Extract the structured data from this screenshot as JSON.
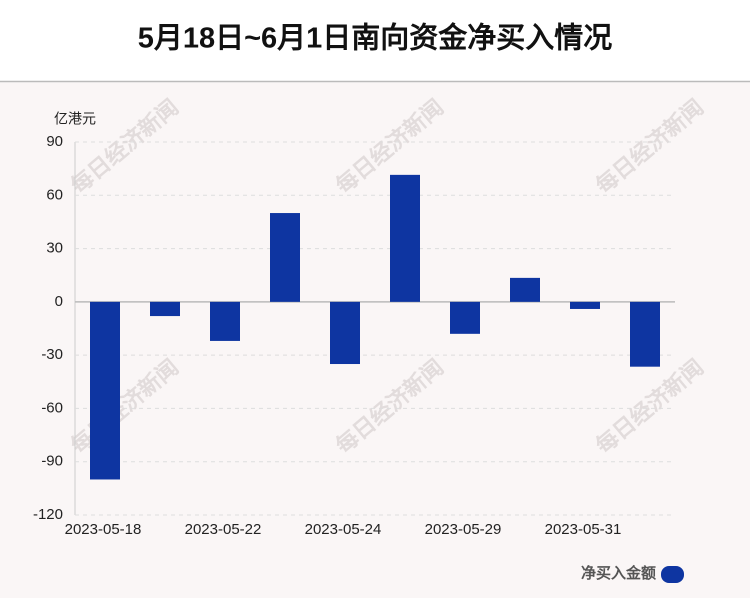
{
  "chart_data": {
    "type": "bar",
    "title": "5月18日~6月1日南向资金净买入情况",
    "watermark": "每日经济新闻",
    "y_label": "亿港元",
    "categories": [
      "2023-05-18",
      null,
      "2023-05-22",
      null,
      "2023-05-24",
      null,
      "2023-05-29",
      null,
      "2023-05-31",
      null
    ],
    "series": [
      {
        "name": "净买入金额",
        "color": "#0e35a1",
        "values": [
          -100,
          -8,
          -22,
          50,
          -35,
          71.5,
          -18,
          13.5,
          -4,
          -36.5
        ]
      }
    ],
    "ylim": [
      -120,
      90
    ],
    "yticks": [
      -120,
      -90,
      -60,
      -30,
      0,
      30,
      60,
      90
    ],
    "grid": true,
    "legend": "bottom-right"
  }
}
